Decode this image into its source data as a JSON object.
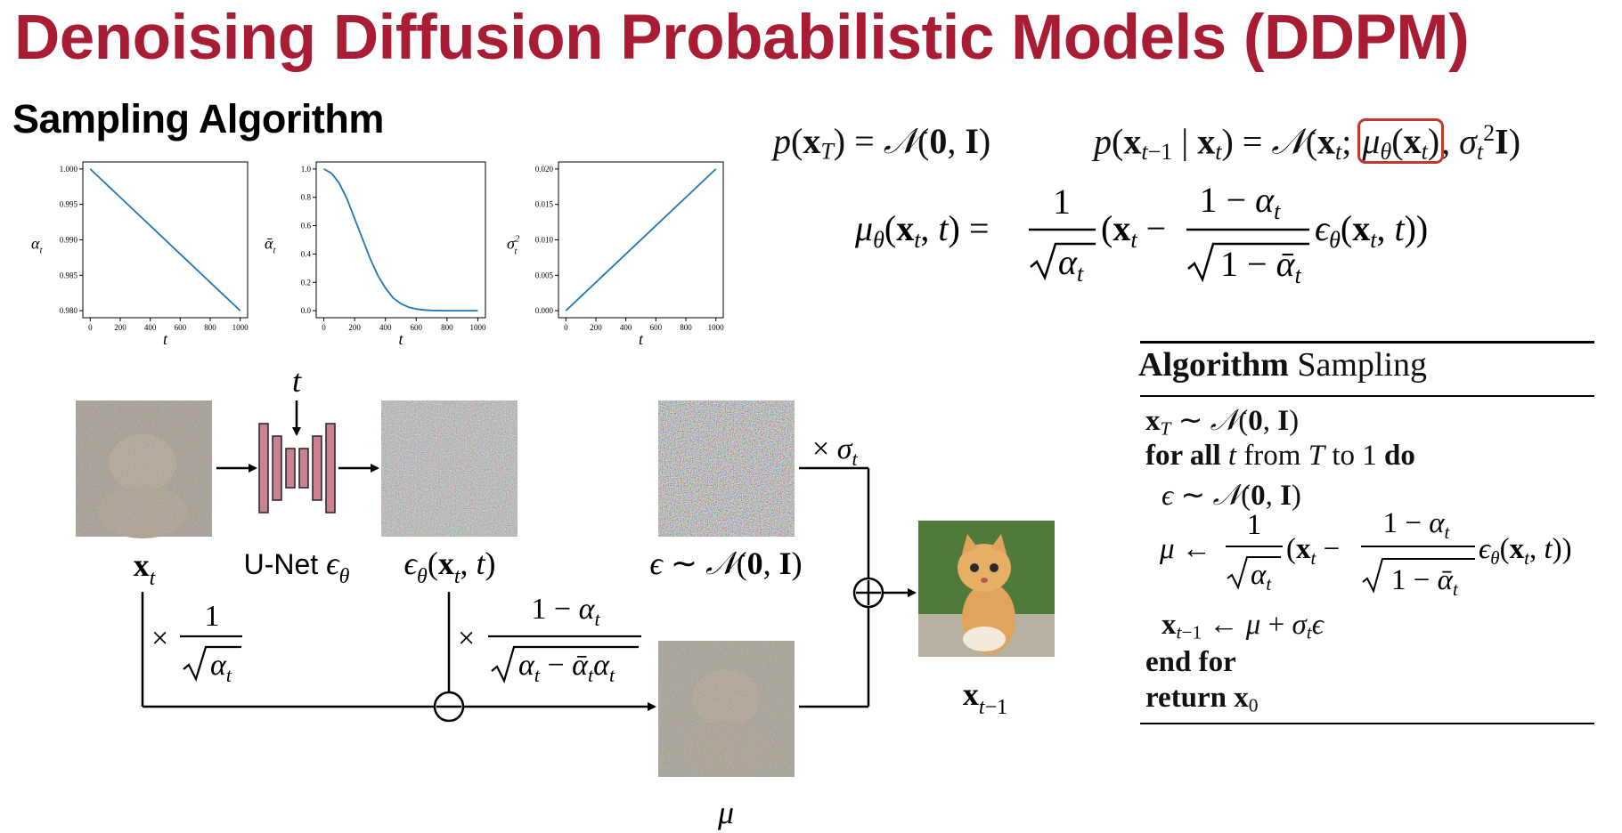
{
  "title": "Denoising Diffusion Probabilistic Models (DDPM)",
  "subtitle": "Sampling Algorithm",
  "colors": {
    "title": "#a81d34",
    "curve": "#1f77b4",
    "unet": "#c9828f",
    "highlight": "#c0392b"
  },
  "chart_data": [
    {
      "type": "line",
      "ylabel": "αt",
      "xlabel": "t",
      "x": [
        0,
        1000
      ],
      "y": [
        1.0,
        0.98
      ],
      "xticks": [
        "0",
        "200",
        "400",
        "600",
        "800",
        "1000"
      ],
      "yticks": [
        "1.000",
        "0.995",
        "0.990",
        "0.985",
        "0.980"
      ],
      "xlim": [
        0,
        1000
      ],
      "ylim": [
        0.98,
        1.0
      ]
    },
    {
      "type": "line",
      "ylabel": "ᾱt",
      "xlabel": "t",
      "x": [
        0,
        50,
        100,
        150,
        200,
        250,
        300,
        350,
        400,
        450,
        500,
        550,
        600,
        650,
        700,
        800,
        900,
        1000
      ],
      "y": [
        1.0,
        0.97,
        0.9,
        0.79,
        0.65,
        0.51,
        0.37,
        0.25,
        0.16,
        0.09,
        0.05,
        0.025,
        0.012,
        0.005,
        0.002,
        0.0,
        0.0,
        0.0
      ],
      "xticks": [
        "0",
        "200",
        "400",
        "600",
        "800",
        "1000"
      ],
      "yticks": [
        "1.0",
        "0.8",
        "0.6",
        "0.4",
        "0.2",
        "0.0"
      ],
      "xlim": [
        0,
        1000
      ],
      "ylim": [
        0,
        1.0
      ]
    },
    {
      "type": "line",
      "ylabel": "σt²",
      "xlabel": "t",
      "x": [
        0,
        1000
      ],
      "y": [
        0.0,
        0.02
      ],
      "xticks": [
        "0",
        "200",
        "400",
        "600",
        "800",
        "1000"
      ],
      "yticks": [
        "0.020",
        "0.015",
        "0.010",
        "0.005",
        "0.000"
      ],
      "xlim": [
        0,
        1000
      ],
      "ylim": [
        0,
        0.02
      ]
    }
  ],
  "diagram": {
    "t_label": "t",
    "xt_label": "xt",
    "unet_label": "U-Net ϵθ",
    "eps_theta_label": "ϵθ(xt, t)",
    "noise_label": "ϵ ∼ 𝒩(0, I)",
    "sigma_label": "× σt",
    "mu_label": "μ",
    "out_label": "xt−1",
    "scale1": {
      "num": "1",
      "den": "αt"
    },
    "scale2": {
      "num": "1 − αt",
      "den": "αt − ᾱtαt"
    }
  },
  "equations": {
    "prior": "p(xT) = 𝒩(0, I)",
    "reverse": "p(xt−1 | xt) = 𝒩(xt; μθ(xt), σt²I)",
    "mean": "μθ(xt, t) = 1/√αt (xt − (1 − αt)/√(1 − ᾱt) ϵθ(xt, t))"
  },
  "algorithm": {
    "header_bold": "Algorithm",
    "header_rest": " Sampling",
    "lines": [
      "xT ∼ 𝒩(0, I)",
      "for all t from T to 1 do",
      "ϵ ∼ 𝒩(0, I)",
      "μ ← 1/√αt (xt − (1 − αt)/√(1 − ᾱt) ϵθ(xt, t))",
      "xt−1 ← μ + σtϵ",
      "end for",
      "return x0"
    ]
  }
}
